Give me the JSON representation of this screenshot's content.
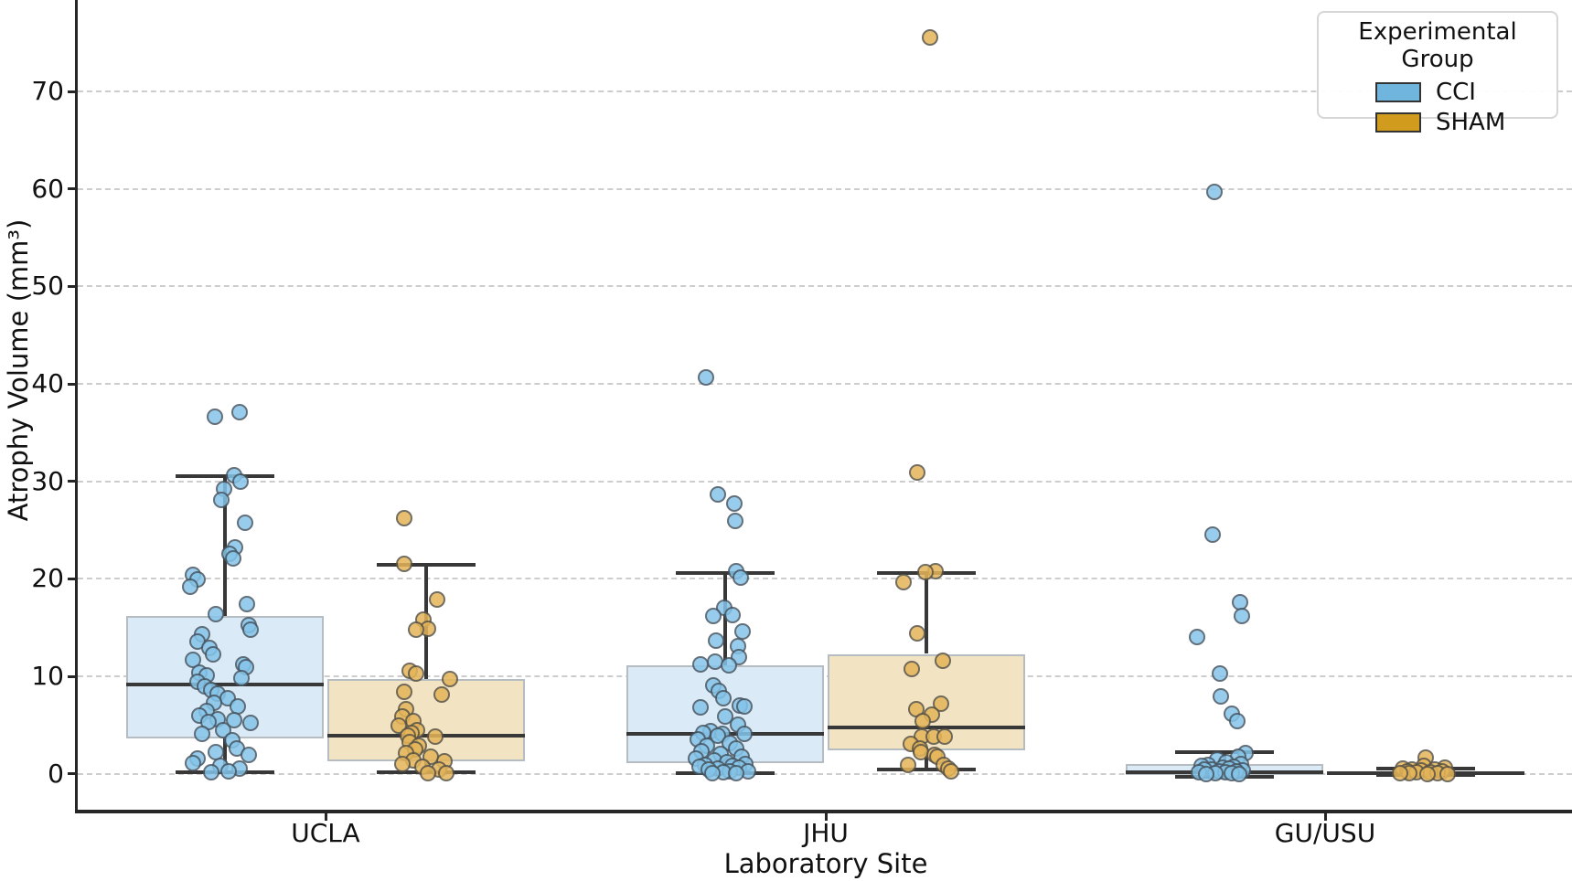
{
  "chart_data": {
    "type": "boxplot_strip",
    "title": "",
    "xlabel": "Laboratory Site",
    "ylabel": "Atrophy Volume (mm³)",
    "categories": [
      "UCLA",
      "JHU",
      "GU/USU"
    ],
    "yticks": [
      0,
      10,
      20,
      30,
      40,
      50,
      60,
      70
    ],
    "ylim": [
      -3.8,
      79.5
    ],
    "grid": "horizontal-dashed",
    "legend": {
      "title": "Experimental Group",
      "entries": [
        {
          "label": "CCI",
          "color": "#6FB5DE"
        },
        {
          "label": "SHAM",
          "color": "#D19C1E"
        }
      ]
    },
    "colors": {
      "CCI": {
        "point": "#85C4E9",
        "box_fill": "#DAEAF6"
      },
      "SHAM": {
        "point": "#E5B559",
        "box_fill": "#F2E4C2"
      },
      "line": "#383838"
    },
    "series": [
      {
        "site": "UCLA",
        "group": "CCI",
        "box": {
          "whislo": 0.15,
          "q1": 3.6,
          "med": 9.2,
          "q3": 16.2,
          "whishi": 30.5
        },
        "points": [
          [
            -11,
            36.6
          ],
          [
            16,
            37.1
          ],
          [
            10,
            30.6
          ],
          [
            17,
            30.0
          ],
          [
            -1,
            29.2
          ],
          [
            -4,
            28.1
          ],
          [
            22,
            25.8
          ],
          [
            11,
            23.2
          ],
          [
            5,
            22.6
          ],
          [
            9,
            22.1
          ],
          [
            -35,
            20.4
          ],
          [
            -30,
            19.9
          ],
          [
            -38,
            19.2
          ],
          [
            24,
            17.4
          ],
          [
            -10,
            16.4
          ],
          [
            26,
            15.3
          ],
          [
            28,
            14.8
          ],
          [
            -25,
            14.3
          ],
          [
            -30,
            13.6
          ],
          [
            -17,
            12.9
          ],
          [
            -13,
            12.3
          ],
          [
            -35,
            11.7
          ],
          [
            20,
            11.2
          ],
          [
            23,
            10.9
          ],
          [
            -28,
            10.4
          ],
          [
            -20,
            10.1
          ],
          [
            18,
            9.8
          ],
          [
            -30,
            9.4
          ],
          [
            -22,
            9.0
          ],
          [
            -15,
            8.6
          ],
          [
            -8,
            8.2
          ],
          [
            3,
            7.8
          ],
          [
            -12,
            7.3
          ],
          [
            14,
            6.9
          ],
          [
            -20,
            6.4
          ],
          [
            -28,
            6.0
          ],
          [
            -8,
            5.6
          ],
          [
            10,
            5.5
          ],
          [
            -18,
            5.3
          ],
          [
            28,
            5.2
          ],
          [
            -2,
            4.5
          ],
          [
            -25,
            4.1
          ],
          [
            8,
            3.4
          ],
          [
            13,
            2.6
          ],
          [
            -10,
            2.2
          ],
          [
            26,
            1.9
          ],
          [
            -30,
            1.6
          ],
          [
            -35,
            1.1
          ],
          [
            -5,
            0.8
          ],
          [
            16,
            0.5
          ],
          [
            4,
            0.3
          ],
          [
            -15,
            0.2
          ]
        ]
      },
      {
        "site": "UCLA",
        "group": "SHAM",
        "box": {
          "whislo": 0.2,
          "q1": 1.3,
          "med": 3.9,
          "q3": 9.75,
          "whishi": 21.4
        },
        "points": [
          [
            -24,
            26.2
          ],
          [
            -24,
            21.5
          ],
          [
            12,
            17.9
          ],
          [
            -3,
            15.8
          ],
          [
            2,
            14.9
          ],
          [
            -11,
            14.8
          ],
          [
            -18,
            10.6
          ],
          [
            -11,
            10.3
          ],
          [
            26,
            9.7
          ],
          [
            -24,
            8.4
          ],
          [
            17,
            8.1
          ],
          [
            -22,
            6.6
          ],
          [
            -26,
            5.9
          ],
          [
            -14,
            5.4
          ],
          [
            -30,
            4.9
          ],
          [
            -10,
            4.5
          ],
          [
            -16,
            4.2
          ],
          [
            -20,
            3.9
          ],
          [
            10,
            3.8
          ],
          [
            -18,
            3.3
          ],
          [
            -8,
            2.9
          ],
          [
            -12,
            2.5
          ],
          [
            -22,
            2.1
          ],
          [
            5,
            1.8
          ],
          [
            -14,
            1.4
          ],
          [
            20,
            1.3
          ],
          [
            -26,
            1.0
          ],
          [
            -4,
            0.7
          ],
          [
            14,
            0.4
          ],
          [
            2,
            0.1
          ],
          [
            22,
            0.1
          ]
        ]
      },
      {
        "site": "JHU",
        "group": "CCI",
        "box": {
          "whislo": 0.05,
          "q1": 1.1,
          "med": 4.1,
          "q3": 11.1,
          "whishi": 20.6
        },
        "points": [
          [
            -21,
            40.7
          ],
          [
            -8,
            28.7
          ],
          [
            10,
            27.7
          ],
          [
            11,
            25.9
          ],
          [
            12,
            20.8
          ],
          [
            17,
            20.1
          ],
          [
            -1,
            17.0
          ],
          [
            8,
            16.3
          ],
          [
            -13,
            16.2
          ],
          [
            19,
            14.6
          ],
          [
            -10,
            13.7
          ],
          [
            14,
            13.1
          ],
          [
            15,
            12.0
          ],
          [
            -11,
            11.5
          ],
          [
            -27,
            11.2
          ],
          [
            4,
            11.1
          ],
          [
            -13,
            9.1
          ],
          [
            -7,
            8.5
          ],
          [
            -2,
            7.8
          ],
          [
            16,
            7.0
          ],
          [
            21,
            6.9
          ],
          [
            -27,
            6.8
          ],
          [
            0,
            5.9
          ],
          [
            14,
            5.0
          ],
          [
            -16,
            4.4
          ],
          [
            -24,
            4.2
          ],
          [
            -3,
            4.1
          ],
          [
            21,
            4.1
          ],
          [
            -8,
            3.9
          ],
          [
            -30,
            3.5
          ],
          [
            5,
            3.2
          ],
          [
            -20,
            2.9
          ],
          [
            12,
            2.6
          ],
          [
            -26,
            2.3
          ],
          [
            -5,
            2.0
          ],
          [
            18,
            1.8
          ],
          [
            -32,
            1.6
          ],
          [
            -12,
            1.4
          ],
          [
            2,
            1.2
          ],
          [
            22,
            1.0
          ],
          [
            -22,
            0.9
          ],
          [
            8,
            0.8
          ],
          [
            -28,
            0.7
          ],
          [
            15,
            0.6
          ],
          [
            -8,
            0.5
          ],
          [
            -18,
            0.4
          ],
          [
            5,
            0.3
          ],
          [
            25,
            0.3
          ],
          [
            -2,
            0.2
          ],
          [
            12,
            0.1
          ],
          [
            -14,
            0.1
          ]
        ]
      },
      {
        "site": "JHU",
        "group": "SHAM",
        "box": {
          "whislo": 0.4,
          "q1": 2.4,
          "med": 4.75,
          "q3": 12.3,
          "whishi": 20.6
        },
        "points": [
          [
            4,
            75.5
          ],
          [
            -10,
            30.9
          ],
          [
            10,
            20.8
          ],
          [
            -1,
            20.7
          ],
          [
            -25,
            19.7
          ],
          [
            -10,
            14.4
          ],
          [
            18,
            11.6
          ],
          [
            -16,
            10.8
          ],
          [
            16,
            7.2
          ],
          [
            -11,
            6.6
          ],
          [
            6,
            6.1
          ],
          [
            -4,
            5.4
          ],
          [
            -5,
            3.8
          ],
          [
            8,
            3.8
          ],
          [
            20,
            3.8
          ],
          [
            -17,
            3.1
          ],
          [
            -7,
            2.6
          ],
          [
            -6,
            2.2
          ],
          [
            9,
            1.9
          ],
          [
            12,
            1.8
          ],
          [
            -20,
            0.9
          ],
          [
            19,
            0.9
          ],
          [
            24,
            0.5
          ],
          [
            27,
            0.3
          ]
        ]
      },
      {
        "site": "GU/USU",
        "group": "CCI",
        "box": {
          "whislo": -0.3,
          "q1": -0.1,
          "med": 0.15,
          "q3": 1.0,
          "whishi": 2.25
        },
        "points": [
          [
            -11,
            59.7
          ],
          [
            -13,
            24.5
          ],
          [
            17,
            17.6
          ],
          [
            19,
            16.2
          ],
          [
            -30,
            14.0
          ],
          [
            -5,
            10.3
          ],
          [
            -4,
            7.9
          ],
          [
            8,
            6.2
          ],
          [
            14,
            5.4
          ],
          [
            23,
            2.1
          ],
          [
            15,
            1.8
          ],
          [
            -8,
            1.5
          ],
          [
            2,
            1.2
          ],
          [
            18,
            1.0
          ],
          [
            -18,
            0.9
          ],
          [
            -25,
            0.8
          ],
          [
            10,
            0.7
          ],
          [
            -2,
            0.6
          ],
          [
            5,
            0.5
          ],
          [
            -14,
            0.45
          ],
          [
            -22,
            0.4
          ],
          [
            20,
            0.35
          ],
          [
            -6,
            0.3
          ],
          [
            13,
            0.25
          ],
          [
            -28,
            0.2
          ],
          [
            1,
            0.15
          ],
          [
            -10,
            0.1
          ],
          [
            8,
            0.05
          ],
          [
            -20,
            0.0
          ],
          [
            16,
            0.0
          ]
        ]
      },
      {
        "site": "GU/USU",
        "group": "SHAM",
        "box": {
          "whislo": -0.1,
          "q1": 0.0,
          "med": 0.1,
          "q3": 0.3,
          "whishi": 0.5
        },
        "points": [
          [
            0,
            1.7
          ],
          [
            -2,
            0.8
          ],
          [
            21,
            0.6
          ],
          [
            -25,
            0.5
          ],
          [
            10,
            0.45
          ],
          [
            -15,
            0.4
          ],
          [
            -5,
            0.35
          ],
          [
            18,
            0.3
          ],
          [
            -20,
            0.25
          ],
          [
            5,
            0.2
          ],
          [
            -10,
            0.15
          ],
          [
            13,
            0.1
          ],
          [
            -18,
            0.05
          ],
          [
            -28,
            0.1
          ],
          [
            2,
            0.0
          ],
          [
            24,
            0.0
          ]
        ]
      }
    ]
  }
}
